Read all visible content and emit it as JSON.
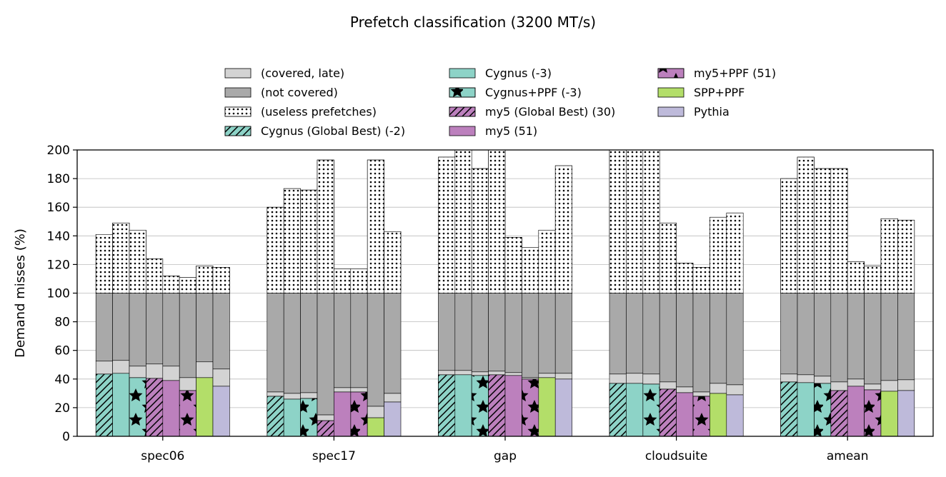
{
  "chart_data": {
    "type": "bar",
    "stacked": true,
    "title": "Prefetch classification (3200 MT/s)",
    "ylabel": "Demand misses (%)",
    "xlabel": "",
    "ylim": [
      0,
      200
    ],
    "yticks": [
      0,
      20,
      40,
      60,
      80,
      100,
      120,
      140,
      160,
      180,
      200
    ],
    "grid": "horizontal",
    "legend_position": "top",
    "categories": [
      "spec06",
      "spec17",
      "gap",
      "cloudsuite",
      "amean"
    ],
    "configs": [
      {
        "name": "Cygnus (Global Best) (-2)",
        "color": "#8dd3c7",
        "pattern": "hatch"
      },
      {
        "name": "Cygnus (-3)",
        "color": "#8dd3c7",
        "pattern": "none"
      },
      {
        "name": "Cygnus+PPF (-3)",
        "color": "#8dd3c7",
        "pattern": "star"
      },
      {
        "name": "my5 (Global Best) (30)",
        "color": "#bc80bd",
        "pattern": "hatch"
      },
      {
        "name": "my5 (51)",
        "color": "#bc80bd",
        "pattern": "none"
      },
      {
        "name": "my5+PPF (51)",
        "color": "#bc80bd",
        "pattern": "star"
      },
      {
        "name": "SPP+PPF",
        "color": "#b3de69",
        "pattern": "none"
      },
      {
        "name": "Pythia",
        "color": "#bebada",
        "pattern": "none"
      }
    ],
    "class_legend": [
      {
        "name": "(covered, late)",
        "color": "#d3d3d3",
        "pattern": "none"
      },
      {
        "name": "(not covered)",
        "color": "#a9a9a9",
        "pattern": "none"
      },
      {
        "name": "(useless prefetches)",
        "color": "#ffffff",
        "pattern": "dots"
      }
    ],
    "segments_order": [
      "covered",
      "covered_late",
      "not_covered",
      "useless"
    ],
    "data": {
      "spec06": {
        "covered": [
          43.5,
          44,
          41,
          40.5,
          39,
          32,
          41,
          35
        ],
        "covered_late": [
          9,
          9,
          8,
          10,
          10,
          9,
          11,
          12
        ],
        "not_covered": [
          47.5,
          47,
          51,
          49.5,
          51,
          59,
          48,
          53
        ],
        "useless": [
          41,
          49,
          44,
          24,
          12,
          11,
          19,
          18
        ]
      },
      "spec17": {
        "covered": [
          28,
          26,
          26.5,
          11,
          31,
          31,
          13,
          24
        ],
        "covered_late": [
          3,
          4,
          4,
          4,
          3,
          3,
          8,
          6
        ],
        "not_covered": [
          69,
          70,
          69.5,
          85,
          66,
          66,
          79,
          70
        ],
        "useless": [
          60,
          73,
          72,
          93,
          17,
          17,
          93,
          43
        ]
      },
      "gap": {
        "covered": [
          43,
          43,
          42.5,
          43,
          42.5,
          40,
          41,
          40
        ],
        "covered_late": [
          3,
          3,
          2.5,
          2.5,
          2,
          1,
          3,
          4
        ],
        "not_covered": [
          54,
          54,
          55,
          54.5,
          55.5,
          59,
          56,
          56
        ],
        "useless": [
          95,
          100,
          87,
          100,
          39,
          32,
          44,
          89
        ]
      },
      "cloudsuite": {
        "covered": [
          37,
          37,
          36.5,
          33,
          30.5,
          28,
          30,
          29
        ],
        "covered_late": [
          6.5,
          7,
          7,
          5,
          4,
          3,
          7,
          7
        ],
        "not_covered": [
          56.5,
          56,
          56.5,
          62,
          65.5,
          69,
          63,
          64
        ],
        "useless": [
          100,
          100,
          100,
          49,
          21,
          18,
          53,
          56
        ]
      },
      "amean": {
        "covered": [
          38,
          37.5,
          37,
          32,
          35,
          32.5,
          31.5,
          32
        ],
        "covered_late": [
          5.5,
          5.5,
          5,
          6,
          5,
          4,
          7.5,
          7.5
        ],
        "not_covered": [
          56.5,
          57,
          58,
          62,
          60,
          63.5,
          61,
          60.5
        ],
        "useless": [
          80,
          95,
          87,
          87,
          22,
          19,
          52,
          51
        ]
      }
    }
  }
}
